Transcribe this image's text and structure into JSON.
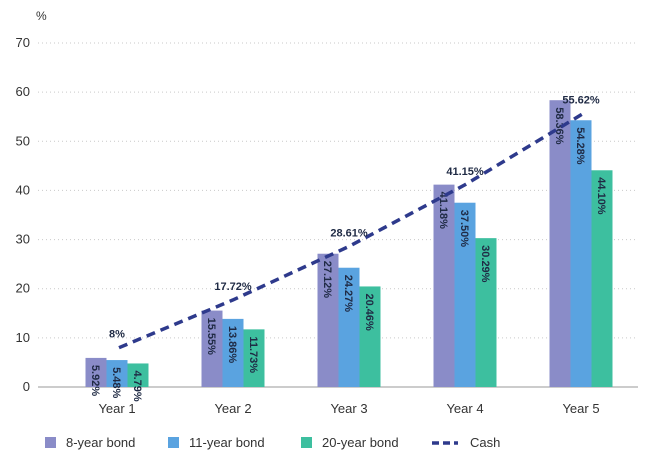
{
  "chart_data": {
    "type": "bar",
    "ylabel": "%",
    "ylim": [
      0,
      70
    ],
    "yticks": [
      0,
      10,
      20,
      30,
      40,
      50,
      60,
      70
    ],
    "grid": true,
    "legend_position": "bottom",
    "categories": [
      "Year 1",
      "Year 2",
      "Year 3",
      "Year 4",
      "Year 5"
    ],
    "series": [
      {
        "name": "8-year bond",
        "color": "#8a8cc8",
        "values": [
          5.92,
          15.55,
          27.12,
          41.18,
          58.36
        ],
        "labels": [
          "5.92%",
          "15.55%",
          "27.12%",
          "41.18%",
          "58.36%"
        ]
      },
      {
        "name": "11-year bond",
        "color": "#5aa3e0",
        "values": [
          5.48,
          13.86,
          24.27,
          37.5,
          54.28
        ],
        "labels": [
          "5.48%",
          "13.86%",
          "24.27%",
          "37.50%",
          "54.28%"
        ]
      },
      {
        "name": "20-year bond",
        "color": "#3dbf9f",
        "values": [
          4.79,
          11.73,
          20.46,
          30.29,
          44.1
        ],
        "labels": [
          "4.79%",
          "11.73%",
          "20.46%",
          "30.29%",
          "44.10%"
        ]
      }
    ],
    "line": {
      "name": "Cash",
      "color": "#2e3a8c",
      "style": "dashed",
      "values": [
        8,
        17.72,
        28.61,
        41.15,
        55.62
      ],
      "labels": [
        "8%",
        "17.72%",
        "28.61%",
        "41.15%",
        "55.62%"
      ]
    }
  }
}
